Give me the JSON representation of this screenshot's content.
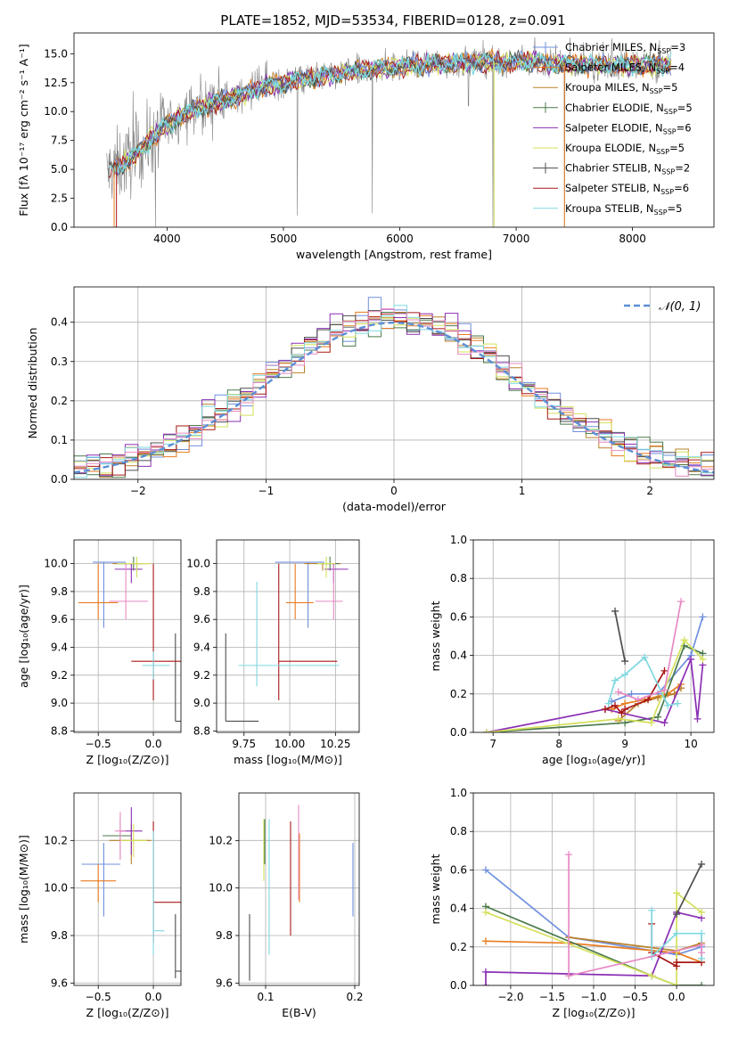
{
  "figure": {
    "title": "PLATE=1852, MJD=53534, FIBERID=0128, z=0.091"
  },
  "colors": {
    "Chabrier MILES": "#6f8fde",
    "Salpeter MILES": "#e87b1f",
    "Kroupa MILES": "#b8822a",
    "Chabrier ELODIE": "#4a7a4a",
    "Salpeter ELODIE": "#8b2fb5",
    "Kroupa ELODIE": "#d4e05a",
    "Chabrier STELIB": "#4d4d4d",
    "Salpeter STELIB": "#a81818",
    "Kroupa STELIB": "#7fd8e0",
    "data": "#808080",
    "pink": "#e78ac3"
  },
  "chart_data": [
    {
      "id": "spectrum",
      "type": "line",
      "title": "PLATE=1852, MJD=53534, FIBERID=0128, z=0.091",
      "xlabel": "wavelength [Angstrom, rest frame]",
      "ylabel": "Flux [fλ 10⁻¹⁷ erg cm⁻² s⁻¹ A⁻¹]",
      "xlim": [
        3200,
        8700
      ],
      "ylim": [
        0,
        16.8
      ],
      "xticks": [
        4000,
        5000,
        6000,
        7000,
        8000
      ],
      "yticks": [
        0.0,
        2.5,
        5.0,
        7.5,
        10.0,
        12.5,
        15.0
      ],
      "grid": false,
      "legend_position": "top-right",
      "legend": [
        "Chabrier MILES, N_SSP=3",
        "Salpeter MILES, N_SSP=4",
        "Kroupa MILES, N_SSP=5",
        "Chabrier ELODIE, N_SSP=5",
        "Salpeter ELODIE, N_SSP=6",
        "Kroupa ELODIE, N_SSP=5",
        "Chabrier STELIB, N_SSP=2",
        "Salpeter STELIB, N_SSP=6",
        "Kroupa STELIB, N_SSP=5"
      ],
      "continuum": {
        "x": [
          3500,
          3700,
          3900,
          4100,
          4300,
          4500,
          4700,
          4900,
          5100,
          5300,
          5500,
          5700,
          5900,
          6100,
          6300,
          6500,
          6700,
          6900,
          7100,
          7300,
          7500,
          7700,
          7900,
          8100,
          8300
        ],
        "y": [
          4.8,
          6.0,
          8.0,
          9.6,
          10.4,
          11.0,
          11.7,
          12.3,
          12.7,
          13.0,
          13.3,
          13.6,
          13.8,
          14.0,
          14.1,
          14.2,
          14.3,
          14.3,
          14.3,
          14.2,
          14.1,
          14.0,
          14.0,
          14.0,
          14.1
        ]
      },
      "absorption_dips": [
        {
          "x": 5120,
          "y": 1.0
        },
        {
          "x": 5765,
          "y": 1.2
        },
        {
          "x": 6590,
          "y": 10.5
        },
        {
          "x": 6800,
          "y": 0.0
        },
        {
          "x": 7415,
          "y": 0.0
        },
        {
          "x": 3900,
          "y": 0.0
        }
      ]
    },
    {
      "id": "residuals",
      "type": "histogram",
      "xlabel": "(data-model)/error",
      "ylabel": "Normed distribution",
      "xlim": [
        -2.5,
        2.5
      ],
      "ylim": [
        0,
        0.49
      ],
      "xticks": [
        -2,
        -1,
        0,
        1,
        2
      ],
      "yticks": [
        0.0,
        0.1,
        0.2,
        0.3,
        0.4
      ],
      "grid": true,
      "legend_position": "top-right",
      "reference_curve": "N(0,1)",
      "reference_label": "𝒩(0, 1)",
      "bin_width": 0.1
    },
    {
      "id": "age_vs_Z",
      "type": "errorbar",
      "xlabel": "Z [log₁₀(Z/Z⊙)]",
      "ylabel": "age [log₁₀(age/yr)]",
      "xlim": [
        -0.72,
        0.25
      ],
      "ylim": [
        8.79,
        10.17
      ],
      "xticks": [
        -0.5,
        0.0
      ],
      "yticks": [
        8.8,
        9.0,
        9.2,
        9.4,
        9.6,
        9.8,
        10.0
      ],
      "grid": true,
      "series": [
        {
          "name": "Chabrier MILES",
          "x": -0.45,
          "xerr": [
            0.1,
            0.2
          ],
          "y": 10.01,
          "yerr": [
            0.47,
            0.0
          ]
        },
        {
          "name": "Salpeter MILES",
          "x": -0.5,
          "xerr": [
            0.18,
            0.18
          ],
          "y": 9.72,
          "yerr": [
            0.12,
            0.28
          ]
        },
        {
          "name": "Kroupa MILES",
          "x": -0.15,
          "xerr": [
            0.22,
            0.12
          ],
          "y": 10.0,
          "yerr": [
            0.05,
            0.0
          ]
        },
        {
          "name": "Chabrier ELODIE",
          "x": -0.18,
          "xerr": [
            0.15,
            0.1
          ],
          "y": 10.0,
          "yerr": [
            0.05,
            0.05
          ]
        },
        {
          "name": "Salpeter ELODIE",
          "x": -0.2,
          "xerr": [
            0.15,
            0.1
          ],
          "y": 9.96,
          "yerr": [
            0.1,
            0.04
          ]
        },
        {
          "name": "Kroupa ELODIE",
          "x": -0.15,
          "xerr": [
            0.18,
            0.12
          ],
          "y": 10.0,
          "yerr": [
            0.1,
            0.05
          ]
        },
        {
          "name": "Chabrier STELIB",
          "x": 0.2,
          "xerr": [
            0.0,
            0.1
          ],
          "y": 8.87,
          "yerr": [
            0.0,
            0.63
          ]
        },
        {
          "name": "Salpeter STELIB",
          "x": 0.0,
          "xerr": [
            0.2,
            0.3
          ],
          "y": 9.3,
          "yerr": [
            0.28,
            0.7
          ]
        },
        {
          "name": "Kroupa STELIB",
          "x": 0.0,
          "xerr": [
            0.1,
            0.15
          ],
          "y": 9.27,
          "yerr": [
            0.1,
            0.1
          ]
        },
        {
          "name": "pink",
          "x": -0.25,
          "xerr": [
            0.15,
            0.2
          ],
          "y": 9.73,
          "yerr": [
            0.13,
            0.27
          ]
        }
      ]
    },
    {
      "id": "age_vs_mass",
      "type": "errorbar",
      "xlabel": "mass [log₁₀(M/M⊙)]",
      "ylabel": "",
      "xlim": [
        9.6,
        10.38
      ],
      "ylim": [
        8.79,
        10.17
      ],
      "xticks": [
        9.75,
        10.0,
        10.25
      ],
      "xticklabels": [
        "9.75",
        "10.00",
        "10.25"
      ],
      "yticks": [
        8.8,
        9.0,
        9.2,
        9.4,
        9.6,
        9.8,
        10.0
      ],
      "grid": true,
      "series": [
        {
          "name": "Chabrier MILES",
          "x": 10.1,
          "xerr": [
            0.18,
            0.09
          ],
          "y": 10.01,
          "yerr": [
            0.47,
            0.0
          ]
        },
        {
          "name": "Salpeter MILES",
          "x": 10.03,
          "xerr": [
            0.05,
            0.1
          ],
          "y": 9.72,
          "yerr": [
            0.12,
            0.28
          ]
        },
        {
          "name": "Kroupa MILES",
          "x": 10.18,
          "xerr": [
            0.1,
            0.1
          ],
          "y": 10.0,
          "yerr": [
            0.05,
            0.0
          ]
        },
        {
          "name": "Chabrier ELODIE",
          "x": 10.22,
          "xerr": [
            0.05,
            0.05
          ],
          "y": 10.0,
          "yerr": [
            0.05,
            0.05
          ]
        },
        {
          "name": "Salpeter ELODIE",
          "x": 10.24,
          "xerr": [
            0.05,
            0.08
          ],
          "y": 9.96,
          "yerr": [
            0.1,
            0.04
          ]
        },
        {
          "name": "Kroupa ELODIE",
          "x": 10.2,
          "xerr": [
            0.05,
            0.05
          ],
          "y": 10.0,
          "yerr": [
            0.1,
            0.05
          ]
        },
        {
          "name": "Chabrier STELIB",
          "x": 9.65,
          "xerr": [
            0.0,
            0.18
          ],
          "y": 8.87,
          "yerr": [
            0.0,
            0.63
          ]
        },
        {
          "name": "Salpeter STELIB",
          "x": 9.94,
          "xerr": [
            0.0,
            0.32
          ],
          "y": 9.3,
          "yerr": [
            0.28,
            0.7
          ]
        },
        {
          "name": "Kroupa STELIB",
          "x": 9.82,
          "xerr": [
            0.1,
            0.45
          ],
          "y": 9.27,
          "yerr": [
            0.15,
            0.6
          ]
        },
        {
          "name": "pink",
          "x": 10.24,
          "xerr": [
            0.1,
            0.05
          ],
          "y": 9.73,
          "yerr": [
            0.13,
            0.27
          ]
        }
      ]
    },
    {
      "id": "massweight_vs_age",
      "type": "line",
      "xlabel": "age  [log₁₀(age/yr)]",
      "ylabel": "mass weight",
      "xlim": [
        6.7,
        10.35
      ],
      "ylim": [
        0,
        1.0
      ],
      "xticks": [
        7,
        8,
        9,
        10
      ],
      "yticks": [
        0.0,
        0.2,
        0.4,
        0.6,
        0.8,
        1.0
      ],
      "grid": true,
      "series": [
        {
          "name": "Chabrier MILES",
          "x": [
            8.8,
            9.1,
            9.5,
            10.0,
            10.18
          ],
          "y": [
            0.16,
            0.2,
            0.2,
            0.4,
            0.6
          ]
        },
        {
          "name": "Salpeter MILES",
          "x": [
            8.8,
            9.0,
            9.3,
            9.65,
            9.85
          ],
          "y": [
            0.12,
            0.15,
            0.17,
            0.2,
            0.25
          ]
        },
        {
          "name": "Kroupa MILES",
          "x": [
            8.9,
            9.2,
            9.5,
            9.75,
            9.85
          ],
          "y": [
            0.06,
            0.15,
            0.18,
            0.2,
            0.23
          ]
        },
        {
          "name": "Chabrier ELODIE",
          "x": [
            6.9,
            9.0,
            9.5,
            9.9,
            10.18
          ],
          "y": [
            0.0,
            0.05,
            0.08,
            0.45,
            0.41
          ]
        },
        {
          "name": "Salpeter ELODIE",
          "x": [
            6.9,
            8.7,
            9.6,
            10.0,
            10.1,
            10.18
          ],
          "y": [
            0.0,
            0.12,
            0.05,
            0.38,
            0.07,
            0.35
          ]
        },
        {
          "name": "Kroupa ELODIE",
          "x": [
            6.9,
            8.9,
            9.4,
            9.9,
            10.18
          ],
          "y": [
            0.0,
            0.07,
            0.05,
            0.48,
            0.38
          ]
        },
        {
          "name": "Chabrier STELIB",
          "x": [
            8.85,
            9.0
          ],
          "y": [
            0.63,
            0.37
          ]
        },
        {
          "name": "Salpeter STELIB",
          "x": [
            8.7,
            8.85,
            8.95,
            9.0,
            9.35,
            9.6
          ],
          "y": [
            0.12,
            0.14,
            0.1,
            0.12,
            0.17,
            0.32
          ]
        },
        {
          "name": "Kroupa STELIB",
          "x": [
            8.75,
            8.85,
            9.0,
            9.3,
            9.65,
            9.8
          ],
          "y": [
            0.15,
            0.27,
            0.3,
            0.39,
            0.14,
            0.15
          ]
        },
        {
          "name": "pink",
          "x": [
            8.9,
            9.2,
            9.6,
            9.85
          ],
          "y": [
            0.21,
            0.17,
            0.22,
            0.68
          ]
        }
      ]
    },
    {
      "id": "mass_vs_Z",
      "type": "errorbar",
      "xlabel": "Z [log₁₀(Z/Z⊙)]",
      "ylabel": "mass [log₁₀(M/M⊙)]",
      "xlim": [
        -0.72,
        0.25
      ],
      "ylim": [
        9.59,
        10.4
      ],
      "xticks": [
        -0.5,
        0.0
      ],
      "yticks": [
        9.6,
        9.8,
        10.0,
        10.2
      ],
      "grid": true,
      "series": [
        {
          "name": "Chabrier MILES",
          "x": -0.45,
          "xerr": [
            0.2,
            0.15
          ],
          "y": 10.1,
          "yerr": [
            0.22,
            0.09
          ]
        },
        {
          "name": "Salpeter MILES",
          "x": -0.5,
          "xerr": [
            0.16,
            0.16
          ],
          "y": 10.03,
          "yerr": [
            0.09,
            0.07
          ]
        },
        {
          "name": "Kroupa MILES",
          "x": -0.2,
          "xerr": [
            0.2,
            0.18
          ],
          "y": 10.2,
          "yerr": [
            0.1,
            0.07
          ]
        },
        {
          "name": "Chabrier ELODIE",
          "x": -0.3,
          "xerr": [
            0.16,
            0.1
          ],
          "y": 10.22,
          "yerr": [
            0.1,
            0.07
          ]
        },
        {
          "name": "Salpeter ELODIE",
          "x": -0.2,
          "xerr": [
            0.1,
            0.1
          ],
          "y": 10.24,
          "yerr": [
            0.1,
            0.1
          ]
        },
        {
          "name": "Kroupa ELODIE",
          "x": -0.18,
          "xerr": [
            0.12,
            0.12
          ],
          "y": 10.2,
          "yerr": [
            0.07,
            0.07
          ]
        },
        {
          "name": "Chabrier STELIB",
          "x": 0.2,
          "xerr": [
            0.0,
            0.1
          ],
          "y": 9.65,
          "yerr": [
            0.03,
            0.24
          ]
        },
        {
          "name": "Salpeter STELIB",
          "x": 0.0,
          "xerr": [
            0.0,
            0.25
          ],
          "y": 9.94,
          "yerr": [
            0.17,
            0.34
          ]
        },
        {
          "name": "Kroupa STELIB",
          "x": 0.0,
          "xerr": [
            0.0,
            0.1
          ],
          "y": 9.82,
          "yerr": [
            0.1,
            0.42
          ]
        },
        {
          "name": "pink",
          "x": -0.3,
          "xerr": [
            0.05,
            0.05
          ],
          "y": 10.24,
          "yerr": [
            0.12,
            0.08
          ]
        }
      ]
    },
    {
      "id": "mass_vs_EBV",
      "type": "errorbar",
      "xlabel": "E(B-V)",
      "ylabel": "",
      "xlim": [
        0.07,
        0.205
      ],
      "ylim": [
        9.59,
        10.4
      ],
      "xticks": [
        0.1,
        0.2
      ],
      "xticklabels": [
        "0.1",
        "0.2"
      ],
      "yticks": [
        9.6,
        9.8,
        10.0,
        10.2
      ],
      "grid": true,
      "series": [
        {
          "name": "Chabrier MILES",
          "x": 0.198,
          "y": 10.1,
          "yerr": [
            0.22,
            0.09
          ]
        },
        {
          "name": "Salpeter MILES",
          "x": 0.138,
          "y": 10.03,
          "yerr": [
            0.09,
            0.2
          ]
        },
        {
          "name": "Kroupa ELODIE",
          "x": 0.098,
          "y": 10.15,
          "yerr": [
            0.12,
            0.14
          ]
        },
        {
          "name": "Chabrier ELODIE",
          "x": 0.099,
          "y": 10.2,
          "yerr": [
            0.1,
            0.09
          ]
        },
        {
          "name": "Chabrier STELIB",
          "x": 0.082,
          "y": 9.75,
          "yerr": [
            0.14,
            0.14
          ]
        },
        {
          "name": "Salpeter STELIB",
          "x": 0.128,
          "y": 10.0,
          "yerr": [
            0.2,
            0.28
          ]
        },
        {
          "name": "Kroupa STELIB",
          "x": 0.104,
          "y": 10.0,
          "yerr": [
            0.28,
            0.29
          ]
        },
        {
          "name": "pink",
          "x": 0.137,
          "y": 10.15,
          "yerr": [
            0.2,
            0.2
          ]
        }
      ]
    },
    {
      "id": "massweight_vs_Z",
      "type": "line",
      "xlabel": "Z [log₁₀(Z/Z⊙)]",
      "ylabel": "mass weight",
      "xlim": [
        -2.45,
        0.45
      ],
      "ylim": [
        0,
        1.0
      ],
      "xticks": [
        -2.0,
        -1.5,
        -1.0,
        -0.5,
        0.0
      ],
      "yticks": [
        0.0,
        0.2,
        0.4,
        0.6,
        0.8,
        1.0
      ],
      "grid": true,
      "series": [
        {
          "name": "Chabrier MILES",
          "x": [
            -2.3,
            -1.3,
            0.0,
            0.3
          ],
          "y": [
            0.6,
            0.25,
            0.16,
            0.2
          ]
        },
        {
          "name": "Salpeter MILES",
          "x": [
            -2.3,
            -1.3,
            0.0,
            0.3
          ],
          "y": [
            0.23,
            0.22,
            0.17,
            0.12
          ]
        },
        {
          "name": "Kroupa MILES",
          "x": [
            -1.3,
            0.0,
            0.3
          ],
          "y": [
            0.25,
            0.18,
            0.22
          ]
        },
        {
          "name": "Chabrier ELODIE",
          "x": [
            -2.3,
            -0.3,
            0.0,
            0.3
          ],
          "y": [
            0.41,
            0.05,
            0.0,
            0.0
          ]
        },
        {
          "name": "Salpeter ELODIE",
          "x": [
            -2.3,
            -2.3,
            -0.3,
            0.0,
            0.3
          ],
          "y": [
            0.0,
            0.07,
            0.05,
            0.38,
            0.35
          ]
        },
        {
          "name": "Kroupa ELODIE",
          "x": [
            -2.3,
            -0.3,
            0.0,
            0.0,
            0.3
          ],
          "y": [
            0.38,
            0.05,
            0.0,
            0.48,
            0.38
          ]
        },
        {
          "name": "Chabrier STELIB",
          "x": [
            0.0,
            0.3
          ],
          "y": [
            0.37,
            0.63
          ]
        },
        {
          "name": "Salpeter STELIB",
          "x": [
            -0.3,
            -0.3,
            0.0,
            0.0,
            0.3
          ],
          "y": [
            0.32,
            0.17,
            0.1,
            0.12,
            0.12
          ]
        },
        {
          "name": "Kroupa STELIB",
          "x": [
            -0.3,
            -0.3,
            0.0,
            0.3,
            0.3
          ],
          "y": [
            0.39,
            0.15,
            0.27,
            0.27,
            0.14
          ]
        },
        {
          "name": "pink",
          "x": [
            -1.3,
            -1.3,
            0.3,
            0.3
          ],
          "y": [
            0.68,
            0.05,
            0.21,
            0.17
          ]
        }
      ]
    }
  ]
}
